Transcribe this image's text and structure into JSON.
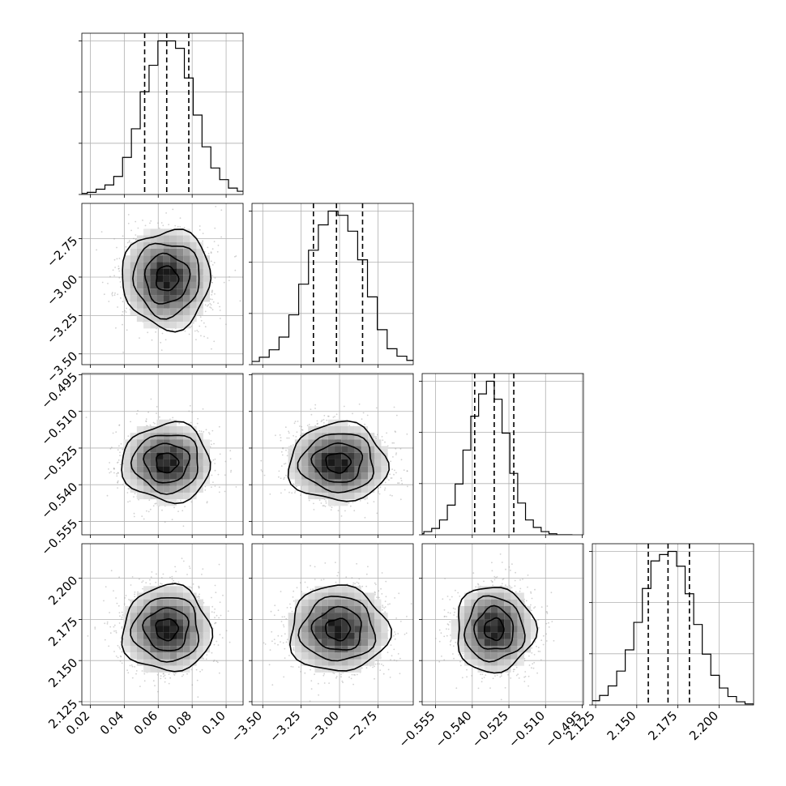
{
  "chart_data": {
    "type": "corner",
    "grid": true,
    "colors": {
      "lines": "#000000",
      "grid": "#b0b0b0",
      "points": "#9a9a9a",
      "background": "#ffffff"
    },
    "parameters": [
      {
        "index": 0,
        "range": [
          0.015,
          0.11
        ],
        "ticks": [
          0.02,
          0.04,
          0.06,
          0.08,
          0.1
        ],
        "tick_labels": [
          "0.02",
          "0.04",
          "0.06",
          "0.08",
          "0.10"
        ],
        "hist_counts": [
          1,
          2,
          5,
          9,
          17,
          35,
          62,
          97,
          122,
          145,
          145,
          138,
          110,
          75,
          45,
          25,
          14,
          6,
          3,
          1
        ],
        "quantiles": [
          0.052,
          0.065,
          0.078
        ],
        "mean": 0.065,
        "std": 0.013
      },
      {
        "index": 1,
        "range": [
          -3.57,
          -2.52
        ],
        "ticks": [
          -3.5,
          -3.25,
          -3.0,
          -2.75
        ],
        "tick_labels": [
          "−3.50",
          "−3.25",
          "−3.00",
          "−2.75"
        ],
        "hist_counts": [
          1,
          3,
          7,
          14,
          26,
          47,
          76,
          108,
          132,
          145,
          141,
          126,
          99,
          64,
          33,
          15,
          8,
          4,
          2,
          1
        ],
        "quantiles": [
          -3.17,
          -3.02,
          -2.85
        ],
        "mean": -3.01,
        "std": 0.16
      },
      {
        "index": 2,
        "range": [
          -0.5605,
          -0.4945
        ],
        "ticks": [
          -0.555,
          -0.54,
          -0.525,
          -0.51,
          -0.495
        ],
        "tick_labels": [
          "−0.555",
          "−0.540",
          "−0.525",
          "−0.510",
          "−0.495"
        ],
        "hist_counts": [
          1,
          3,
          6,
          14,
          28,
          48,
          80,
          112,
          133,
          145,
          128,
          96,
          58,
          30,
          14,
          7,
          3,
          1,
          0,
          0
        ],
        "quantiles": [
          -0.539,
          -0.531,
          -0.523
        ],
        "mean": -0.531,
        "std": 0.008
      },
      {
        "index": 3,
        "range": [
          2.123,
          2.221
        ],
        "ticks": [
          2.125,
          2.15,
          2.175,
          2.2
        ],
        "tick_labels": [
          "2.125",
          "2.150",
          "2.175",
          "2.200"
        ],
        "hist_counts": [
          1,
          4,
          9,
          18,
          32,
          52,
          78,
          110,
          136,
          142,
          145,
          131,
          105,
          76,
          48,
          28,
          16,
          8,
          3,
          1
        ],
        "quantiles": [
          2.157,
          2.169,
          2.182
        ],
        "mean": 2.169,
        "std": 0.013
      }
    ],
    "correlations": [
      {
        "x": 0,
        "y": 1,
        "rho": 0.0
      },
      {
        "x": 0,
        "y": 2,
        "rho": 0.0
      },
      {
        "x": 1,
        "y": 2,
        "rho": 0.0
      },
      {
        "x": 0,
        "y": 3,
        "rho": 0.0
      },
      {
        "x": 1,
        "y": 3,
        "rho": 0.0
      },
      {
        "x": 2,
        "y": 3,
        "rho": 0.0
      }
    ]
  }
}
